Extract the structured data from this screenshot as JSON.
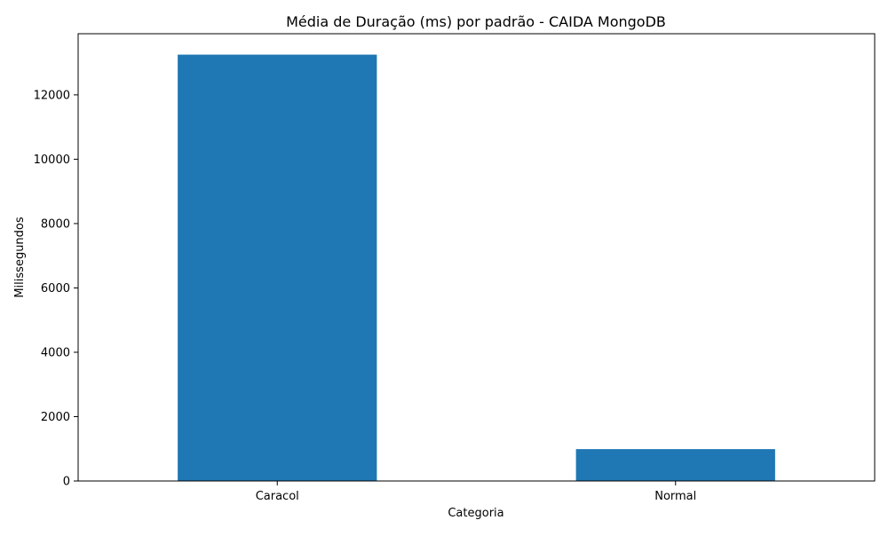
{
  "chart_data": {
    "type": "bar",
    "title": "Média de Duração (ms) por padrão - CAIDA MongoDB",
    "xlabel": "Categoria",
    "ylabel": "Milissegundos",
    "categories": [
      "Caracol",
      "Normal"
    ],
    "values": [
      13250,
      990
    ],
    "ylim": [
      0,
      13900
    ],
    "yticks": [
      0,
      2000,
      4000,
      6000,
      8000,
      10000,
      12000
    ],
    "bar_color": "#1f77b4",
    "grid": false,
    "legend": "none"
  }
}
